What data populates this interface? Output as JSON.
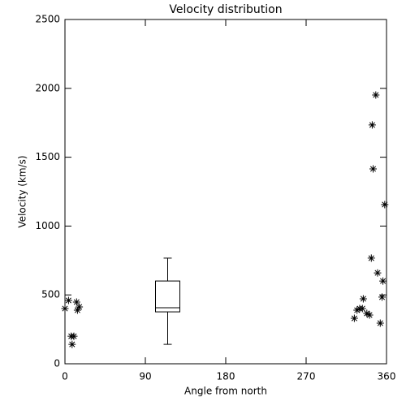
{
  "chart_data": {
    "type": "scatter",
    "title": "Velocity distribution",
    "x_label": "Angle from north",
    "y_label": "Velocity (km/s)",
    "color": "#000000",
    "marker": "asterisk",
    "x": [
      0,
      4,
      13,
      14,
      16,
      7,
      10,
      8,
      324,
      327,
      330,
      333,
      334,
      338,
      341,
      343,
      344,
      345,
      348,
      350,
      353,
      355,
      356,
      358
    ],
    "values": [
      401,
      460,
      448,
      389,
      413,
      200,
      200,
      141,
      330,
      389,
      401,
      401,
      472,
      366,
      354,
      767,
      1734,
      1415,
      1952,
      660,
      295,
      484,
      601,
      1156
    ],
    "box": {
      "x": 115,
      "min": 141,
      "q1": 377,
      "median": 407,
      "q3": 601,
      "max": 767
    },
    "xlim": [
      0,
      360
    ],
    "xticks": [
      0,
      90,
      180,
      270,
      360
    ],
    "ylim": [
      0,
      2500
    ],
    "yticks": [
      0,
      500,
      1000,
      1500,
      2000,
      2500
    ]
  }
}
